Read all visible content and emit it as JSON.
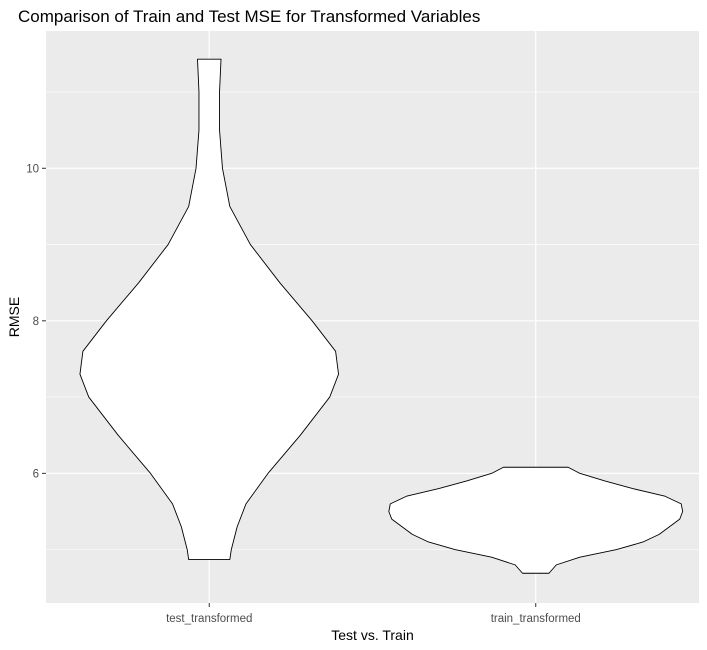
{
  "chart_data": {
    "type": "violin",
    "title": "Comparison of Train and Test MSE for Transformed Variables",
    "xlabel": "Test vs. Train",
    "ylabel": "RMSE",
    "categories": [
      "test_transformed",
      "train_transformed"
    ],
    "ylim": [
      4.3,
      11.8
    ],
    "yticks": [
      6,
      8,
      10
    ],
    "grid": true,
    "panel_background": "#EBEBEB",
    "grid_color": "#FFFFFF",
    "violin_fill": "#FFFFFF",
    "violin_outline": "#000000",
    "violins": [
      {
        "category": "test_transformed",
        "min": 4.87,
        "max": 11.43,
        "profile": [
          [
            4.87,
            0.14
          ],
          [
            5.0,
            0.15
          ],
          [
            5.3,
            0.19
          ],
          [
            5.6,
            0.25
          ],
          [
            6.0,
            0.4
          ],
          [
            6.5,
            0.62
          ],
          [
            7.0,
            0.82
          ],
          [
            7.3,
            0.88
          ],
          [
            7.6,
            0.86
          ],
          [
            8.0,
            0.7
          ],
          [
            8.5,
            0.48
          ],
          [
            9.0,
            0.28
          ],
          [
            9.5,
            0.14
          ],
          [
            10.0,
            0.09
          ],
          [
            10.5,
            0.07
          ],
          [
            11.0,
            0.07
          ],
          [
            11.43,
            0.08
          ]
        ]
      },
      {
        "category": "train_transformed",
        "min": 4.69,
        "max": 6.08,
        "profile": [
          [
            4.69,
            0.09
          ],
          [
            4.8,
            0.14
          ],
          [
            4.9,
            0.3
          ],
          [
            5.0,
            0.55
          ],
          [
            5.1,
            0.73
          ],
          [
            5.2,
            0.84
          ],
          [
            5.3,
            0.91
          ],
          [
            5.4,
            0.98
          ],
          [
            5.5,
            1.0
          ],
          [
            5.6,
            0.99
          ],
          [
            5.7,
            0.88
          ],
          [
            5.8,
            0.66
          ],
          [
            5.9,
            0.47
          ],
          [
            6.0,
            0.3
          ],
          [
            6.08,
            0.22
          ]
        ]
      }
    ]
  }
}
